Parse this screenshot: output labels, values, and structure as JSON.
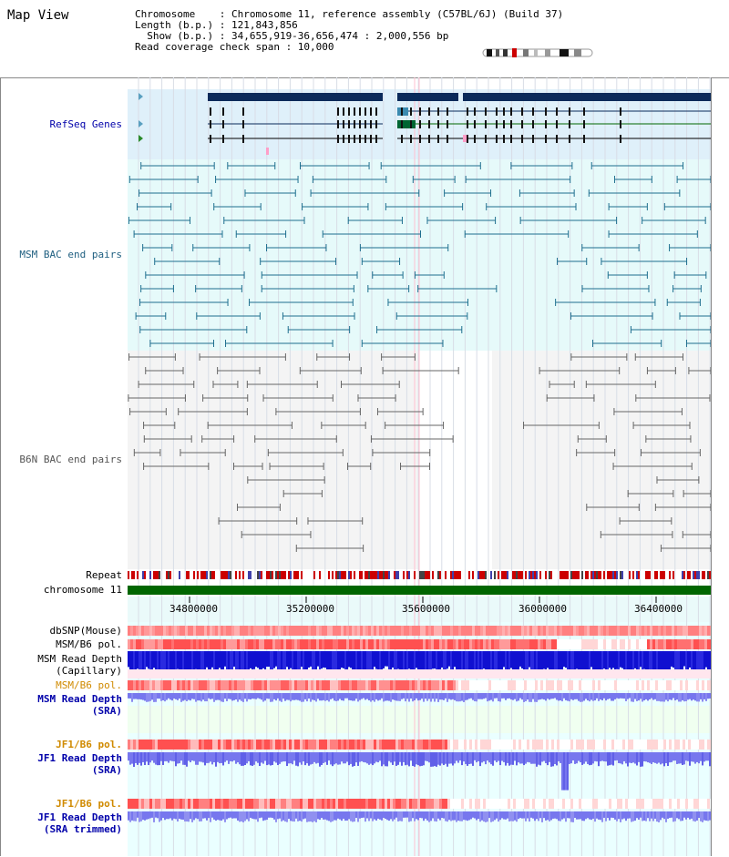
{
  "view_title": "Map View",
  "info": {
    "chromosome": "Chromosome    : Chromosome 11, reference assembly (C57BL/6J) (Build 37)",
    "length": "Length (b.p.) : 121,843,856",
    "show": "  Show (b.p.) : 34,655,919-36,656,474 : 2,000,556 bp",
    "coverage": "Read coverage check span : 10,000"
  },
  "tracks": {
    "refseq": "RefSeq Genes",
    "msm_bac": "MSM BAC end pairs",
    "b6n_bac": "B6N BAC end pairs",
    "repeat": "Repeat",
    "chromosome": "chromosome 11",
    "dbsnp": "dbSNP(Mouse)",
    "msm_b6_pol": "MSM/B6 pol.",
    "msm_depth_cap_1": "MSM Read Depth",
    "msm_depth_cap_2": "(Capillary)",
    "msm_b6_pol2": "MSM/B6 pol.",
    "msm_depth_sra_1": "MSM Read Depth",
    "msm_depth_sra_2": "(SRA)",
    "jf1_b6_pol": "JF1/B6 pol.",
    "jf1_depth_sra_1": "JF1 Read Depth",
    "jf1_depth_sra_2": "(SRA)",
    "jf1_b6_pol2": "JF1/B6 pol.",
    "jf1_depth_trim_1": "JF1 Read Depth",
    "jf1_depth_trim_2": "(SRA trimmed)"
  },
  "axis_ticks": [
    "34800000",
    "35200000",
    "35600000",
    "36000000",
    "36400000"
  ],
  "colors": {
    "refseq_bg": "#dff0fa",
    "msm_bg": "#e6fafa",
    "b6n_bg": "#f4f4f4",
    "gene_navy": "#0a2a5a",
    "gene_green": "#006600",
    "msm_line": "#1f6f8f",
    "b6n_line": "#666666",
    "chromosome_bar": "#006600",
    "depth_blue": "#1010d0",
    "depth_light": "#7777ee"
  }
}
